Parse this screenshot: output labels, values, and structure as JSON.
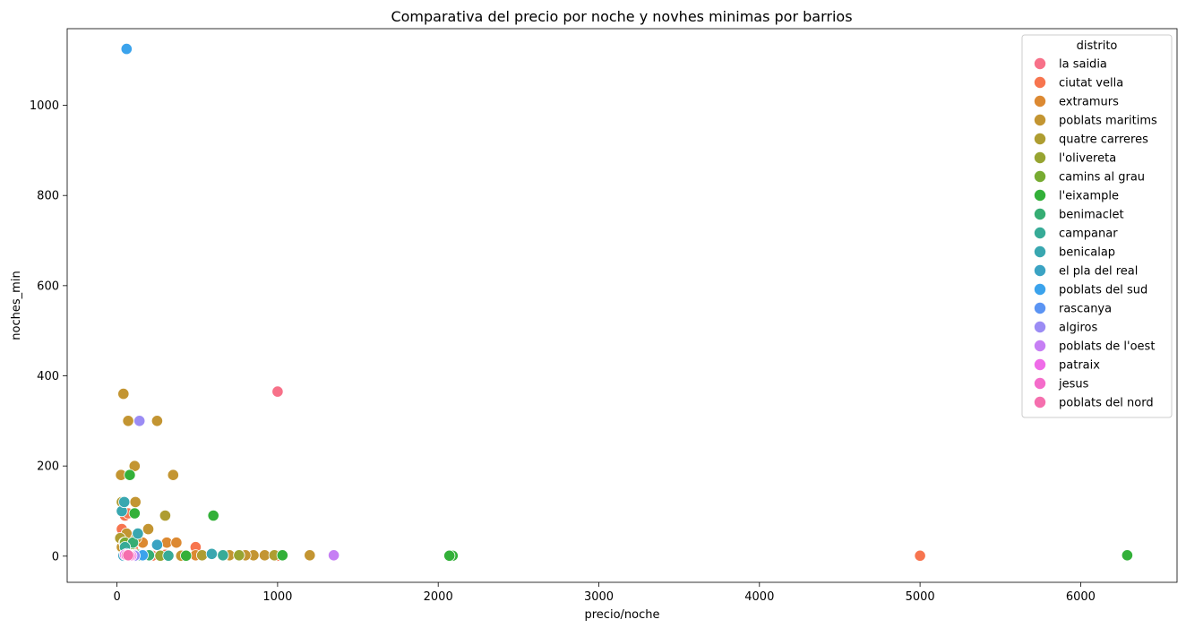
{
  "chart_data": {
    "type": "scatter",
    "title": "Comparativa del precio por noche y novhes minimas por barrios",
    "xlabel": "precio/noche",
    "ylabel": "noches_min",
    "xlim": [
      -310,
      6600
    ],
    "ylim": [
      -58,
      1170
    ],
    "xticks": [
      0,
      1000,
      2000,
      3000,
      4000,
      5000,
      6000
    ],
    "yticks": [
      0,
      200,
      400,
      600,
      800,
      1000
    ],
    "grid": false,
    "legend": {
      "title": "distrito",
      "position": "top-right"
    },
    "series": [
      {
        "name": "la saidia",
        "color": "#f77189",
        "points": [
          [
            1000,
            365
          ],
          [
            40,
            30
          ],
          [
            60,
            5
          ],
          [
            80,
            2
          ],
          [
            120,
            3
          ],
          [
            70,
            1
          ]
        ]
      },
      {
        "name": "ciutat vella",
        "color": "#f7754f",
        "points": [
          [
            5000,
            1
          ],
          [
            1000,
            1
          ],
          [
            490,
            20
          ],
          [
            50,
            90
          ],
          [
            30,
            60
          ],
          [
            100,
            15
          ],
          [
            120,
            2
          ],
          [
            300,
            3
          ],
          [
            220,
            1
          ],
          [
            60,
            10
          ],
          [
            40,
            5
          ],
          [
            70,
            95
          ]
        ]
      },
      {
        "name": "extramurs",
        "color": "#dc8932",
        "points": [
          [
            90,
            30
          ],
          [
            160,
            30
          ],
          [
            310,
            30
          ],
          [
            370,
            30
          ],
          [
            490,
            2
          ],
          [
            40,
            15
          ],
          [
            60,
            5
          ],
          [
            200,
            3
          ],
          [
            110,
            1
          ],
          [
            140,
            2
          ]
        ]
      },
      {
        "name": "poblats maritims",
        "color": "#c39532",
        "points": [
          [
            40,
            360
          ],
          [
            70,
            300
          ],
          [
            250,
            300
          ],
          [
            110,
            200
          ],
          [
            350,
            180
          ],
          [
            25,
            180
          ],
          [
            115,
            120
          ],
          [
            195,
            60
          ],
          [
            920,
            2
          ],
          [
            1200,
            2
          ],
          [
            850,
            2
          ],
          [
            60,
            50
          ],
          [
            30,
            20
          ],
          [
            75,
            5
          ],
          [
            400,
            1
          ],
          [
            700,
            2
          ],
          [
            800,
            2
          ],
          [
            120,
            40
          ]
        ]
      },
      {
        "name": "quatre carreres",
        "color": "#ae9d31",
        "points": [
          [
            300,
            90
          ],
          [
            30,
            120
          ],
          [
            20,
            40
          ],
          [
            90,
            10
          ],
          [
            150,
            3
          ],
          [
            530,
            2
          ],
          [
            60,
            1
          ],
          [
            760,
            2
          ],
          [
            980,
            2
          ]
        ]
      },
      {
        "name": "l'olivereta",
        "color": "#97a431",
        "points": [
          [
            45,
            30
          ],
          [
            75,
            5
          ],
          [
            130,
            2
          ],
          [
            270,
            1
          ],
          [
            760,
            2
          ]
        ]
      },
      {
        "name": "camins al grau",
        "color": "#77ab31",
        "points": [
          [
            50,
            30
          ],
          [
            80,
            10
          ],
          [
            110,
            2
          ],
          [
            200,
            1
          ],
          [
            660,
            1
          ]
        ]
      },
      {
        "name": "l'eixample",
        "color": "#33b039",
        "points": [
          [
            600,
            90
          ],
          [
            80,
            180
          ],
          [
            6290,
            2
          ],
          [
            2090,
            1
          ],
          [
            2070,
            1
          ],
          [
            430,
            1
          ],
          [
            1030,
            2
          ],
          [
            110,
            95
          ],
          [
            130,
            3
          ],
          [
            60,
            1
          ]
        ]
      },
      {
        "name": "benimaclet",
        "color": "#36ad73",
        "points": [
          [
            100,
            30
          ],
          [
            60,
            5
          ],
          [
            200,
            2
          ],
          [
            150,
            1
          ]
        ]
      },
      {
        "name": "campanar",
        "color": "#37ab97",
        "points": [
          [
            50,
            20
          ],
          [
            90,
            3
          ],
          [
            320,
            1
          ],
          [
            660,
            2
          ]
        ]
      },
      {
        "name": "benicalap",
        "color": "#39a7b0",
        "points": [
          [
            30,
            100
          ],
          [
            45,
            120
          ],
          [
            590,
            5
          ],
          [
            130,
            50
          ],
          [
            80,
            2
          ],
          [
            50,
            1
          ]
        ]
      },
      {
        "name": "el pla del real",
        "color": "#3ba3c3",
        "points": [
          [
            250,
            25
          ],
          [
            110,
            2
          ],
          [
            40,
            1
          ]
        ]
      },
      {
        "name": "poblats del sud",
        "color": "#3ba3ec",
        "points": [
          [
            60,
            1125
          ],
          [
            70,
            3
          ],
          [
            160,
            2
          ]
        ]
      },
      {
        "name": "rascanya",
        "color": "#5b94f3",
        "points": [
          [
            60,
            5
          ],
          [
            90,
            2
          ]
        ]
      },
      {
        "name": "algiros",
        "color": "#9b8cf4",
        "points": [
          [
            140,
            300
          ],
          [
            80,
            3
          ],
          [
            110,
            1
          ]
        ]
      },
      {
        "name": "poblats de l'oest",
        "color": "#c67ff4",
        "points": [
          [
            1350,
            2
          ],
          [
            70,
            2
          ]
        ]
      },
      {
        "name": "patraix",
        "color": "#ef6ce8",
        "points": [
          [
            50,
            3
          ],
          [
            90,
            1
          ]
        ]
      },
      {
        "name": "jesus",
        "color": "#f46cca",
        "points": [
          [
            60,
            2
          ],
          [
            80,
            1
          ]
        ]
      },
      {
        "name": "poblats del nord",
        "color": "#f56fae",
        "points": [
          [
            70,
            2
          ]
        ]
      }
    ]
  }
}
